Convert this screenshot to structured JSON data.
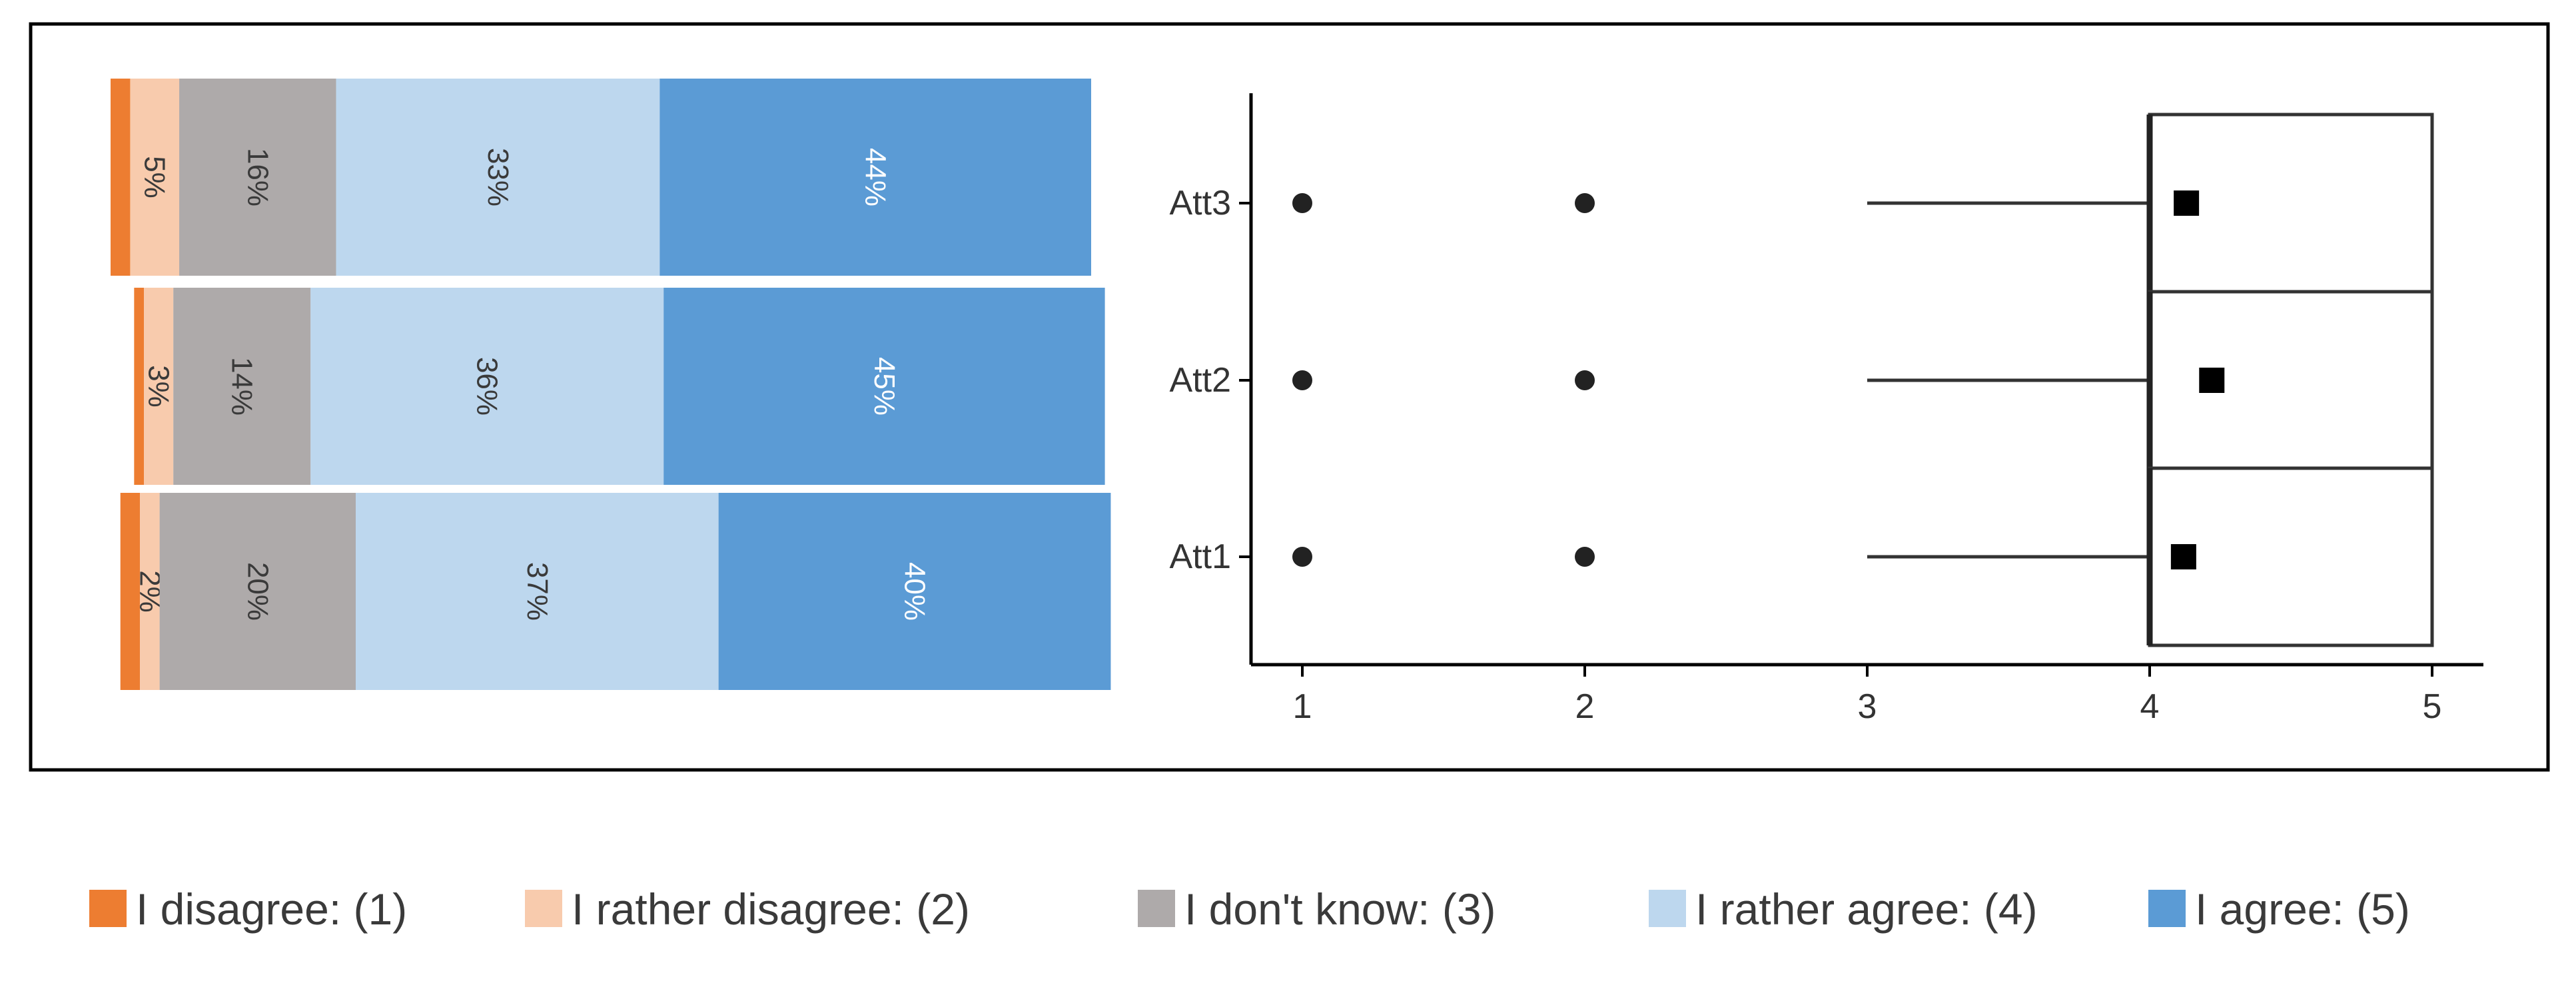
{
  "chart_data": [
    {
      "type": "bar",
      "orientation": "horizontal-stacked",
      "categories": [
        "Att3",
        "Att2",
        "Att1"
      ],
      "series": [
        {
          "name": "I disagree: (1)",
          "color": "#ED7D31",
          "values": [
            2,
            1,
            2
          ]
        },
        {
          "name": "I rather disagree: (2)",
          "color": "#F8CBAD",
          "values": [
            5,
            3,
            2
          ]
        },
        {
          "name": "I don't know: (3)",
          "color": "#AEAAAA",
          "values": [
            16,
            14,
            20
          ]
        },
        {
          "name": "I rather agree: (4)",
          "color": "#BDD7EE",
          "values": [
            33,
            36,
            37
          ]
        },
        {
          "name": "I agree: (5)",
          "color": "#5B9BD5",
          "values": [
            44,
            45,
            40
          ]
        }
      ],
      "segment_labels": [
        [
          "",
          "5%",
          "16%",
          "33%",
          "44%"
        ],
        [
          "",
          "3%",
          "14%",
          "36%",
          "45%"
        ],
        [
          "",
          "2%",
          "20%",
          "37%",
          "40%"
        ]
      ],
      "bar_offsets": [
        0.0,
        2.4,
        1.0
      ],
      "unit": "%"
    },
    {
      "type": "boxplot",
      "categories": [
        "Att3",
        "Att2",
        "Att1"
      ],
      "x_ticks": [
        1,
        2,
        3,
        4,
        5
      ],
      "xlim": [
        0.82,
        5.2
      ],
      "boxes": [
        {
          "name": "Att3",
          "whisker_low": 3,
          "q1": 4,
          "median": 4,
          "q3": 5,
          "whisker_high": 5,
          "mean": 4.13,
          "outliers": [
            1,
            2
          ]
        },
        {
          "name": "Att2",
          "whisker_low": 3,
          "q1": 4,
          "median": 4,
          "q3": 5,
          "whisker_high": 5,
          "mean": 4.22,
          "outliers": [
            1,
            2
          ]
        },
        {
          "name": "Att1",
          "whisker_low": 3,
          "q1": 4,
          "median": 4,
          "q3": 5,
          "whisker_high": 5,
          "mean": 4.12,
          "outliers": [
            1,
            2
          ]
        }
      ]
    }
  ],
  "legend": {
    "items": [
      {
        "label": "I disagree: (1)",
        "color": "#ED7D31"
      },
      {
        "label": "I rather disagree: (2)",
        "color": "#F8CBAD"
      },
      {
        "label": "I don't know: (3)",
        "color": "#AEAAAA"
      },
      {
        "label": "I rather agree: (4)",
        "color": "#BDD7EE"
      },
      {
        "label": "I agree: (5)",
        "color": "#5B9BD5"
      }
    ]
  },
  "colors": {
    "frame": "#000000",
    "axis": "#000000",
    "label_dark": "#3a3a3a",
    "label_light": "#ffffff"
  }
}
